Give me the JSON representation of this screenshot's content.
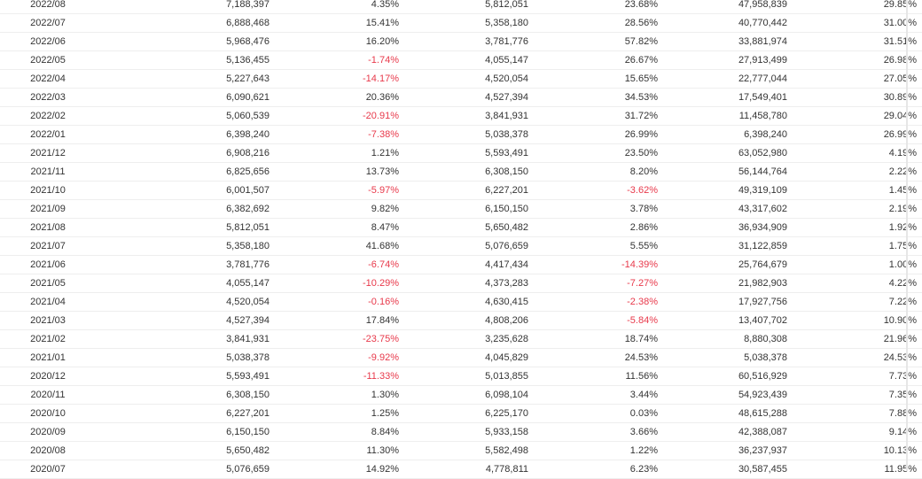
{
  "table": {
    "rows": [
      [
        "2022/08",
        "7,188,397",
        "4.35%",
        "5,812,051",
        "23.68%",
        "47,958,839",
        "29.85%"
      ],
      [
        "2022/07",
        "6,888,468",
        "15.41%",
        "5,358,180",
        "28.56%",
        "40,770,442",
        "31.00%"
      ],
      [
        "2022/06",
        "5,968,476",
        "16.20%",
        "3,781,776",
        "57.82%",
        "33,881,974",
        "31.51%"
      ],
      [
        "2022/05",
        "5,136,455",
        "-1.74%",
        "4,055,147",
        "26.67%",
        "27,913,499",
        "26.98%"
      ],
      [
        "2022/04",
        "5,227,643",
        "-14.17%",
        "4,520,054",
        "15.65%",
        "22,777,044",
        "27.05%"
      ],
      [
        "2022/03",
        "6,090,621",
        "20.36%",
        "4,527,394",
        "34.53%",
        "17,549,401",
        "30.89%"
      ],
      [
        "2022/02",
        "5,060,539",
        "-20.91%",
        "3,841,931",
        "31.72%",
        "11,458,780",
        "29.04%"
      ],
      [
        "2022/01",
        "6,398,240",
        "-7.38%",
        "5,038,378",
        "26.99%",
        "6,398,240",
        "26.99%"
      ],
      [
        "2021/12",
        "6,908,216",
        "1.21%",
        "5,593,491",
        "23.50%",
        "63,052,980",
        "4.19%"
      ],
      [
        "2021/11",
        "6,825,656",
        "13.73%",
        "6,308,150",
        "8.20%",
        "56,144,764",
        "2.22%"
      ],
      [
        "2021/10",
        "6,001,507",
        "-5.97%",
        "6,227,201",
        "-3.62%",
        "49,319,109",
        "1.45%"
      ],
      [
        "2021/09",
        "6,382,692",
        "9.82%",
        "6,150,150",
        "3.78%",
        "43,317,602",
        "2.19%"
      ],
      [
        "2021/08",
        "5,812,051",
        "8.47%",
        "5,650,482",
        "2.86%",
        "36,934,909",
        "1.92%"
      ],
      [
        "2021/07",
        "5,358,180",
        "41.68%",
        "5,076,659",
        "5.55%",
        "31,122,859",
        "1.75%"
      ],
      [
        "2021/06",
        "3,781,776",
        "-6.74%",
        "4,417,434",
        "-14.39%",
        "25,764,679",
        "1.00%"
      ],
      [
        "2021/05",
        "4,055,147",
        "-10.29%",
        "4,373,283",
        "-7.27%",
        "21,982,903",
        "4.22%"
      ],
      [
        "2021/04",
        "4,520,054",
        "-0.16%",
        "4,630,415",
        "-2.38%",
        "17,927,756",
        "7.22%"
      ],
      [
        "2021/03",
        "4,527,394",
        "17.84%",
        "4,808,206",
        "-5.84%",
        "13,407,702",
        "10.90%"
      ],
      [
        "2021/02",
        "3,841,931",
        "-23.75%",
        "3,235,628",
        "18.74%",
        "8,880,308",
        "21.96%"
      ],
      [
        "2021/01",
        "5,038,378",
        "-9.92%",
        "4,045,829",
        "24.53%",
        "5,038,378",
        "24.53%"
      ],
      [
        "2020/12",
        "5,593,491",
        "-11.33%",
        "5,013,855",
        "11.56%",
        "60,516,929",
        "7.73%"
      ],
      [
        "2020/11",
        "6,308,150",
        "1.30%",
        "6,098,104",
        "3.44%",
        "54,923,439",
        "7.35%"
      ],
      [
        "2020/10",
        "6,227,201",
        "1.25%",
        "6,225,170",
        "0.03%",
        "48,615,288",
        "7.88%"
      ],
      [
        "2020/09",
        "6,150,150",
        "8.84%",
        "5,933,158",
        "3.66%",
        "42,388,087",
        "9.14%"
      ],
      [
        "2020/08",
        "5,650,482",
        "11.30%",
        "5,582,498",
        "1.22%",
        "36,237,937",
        "10.13%"
      ],
      [
        "2020/07",
        "5,076,659",
        "14.92%",
        "4,778,811",
        "6.23%",
        "30,587,455",
        "11.95%"
      ]
    ]
  },
  "colors": {
    "negative": "#e8394b",
    "text": "#333333",
    "row_border": "#eeeeee"
  }
}
